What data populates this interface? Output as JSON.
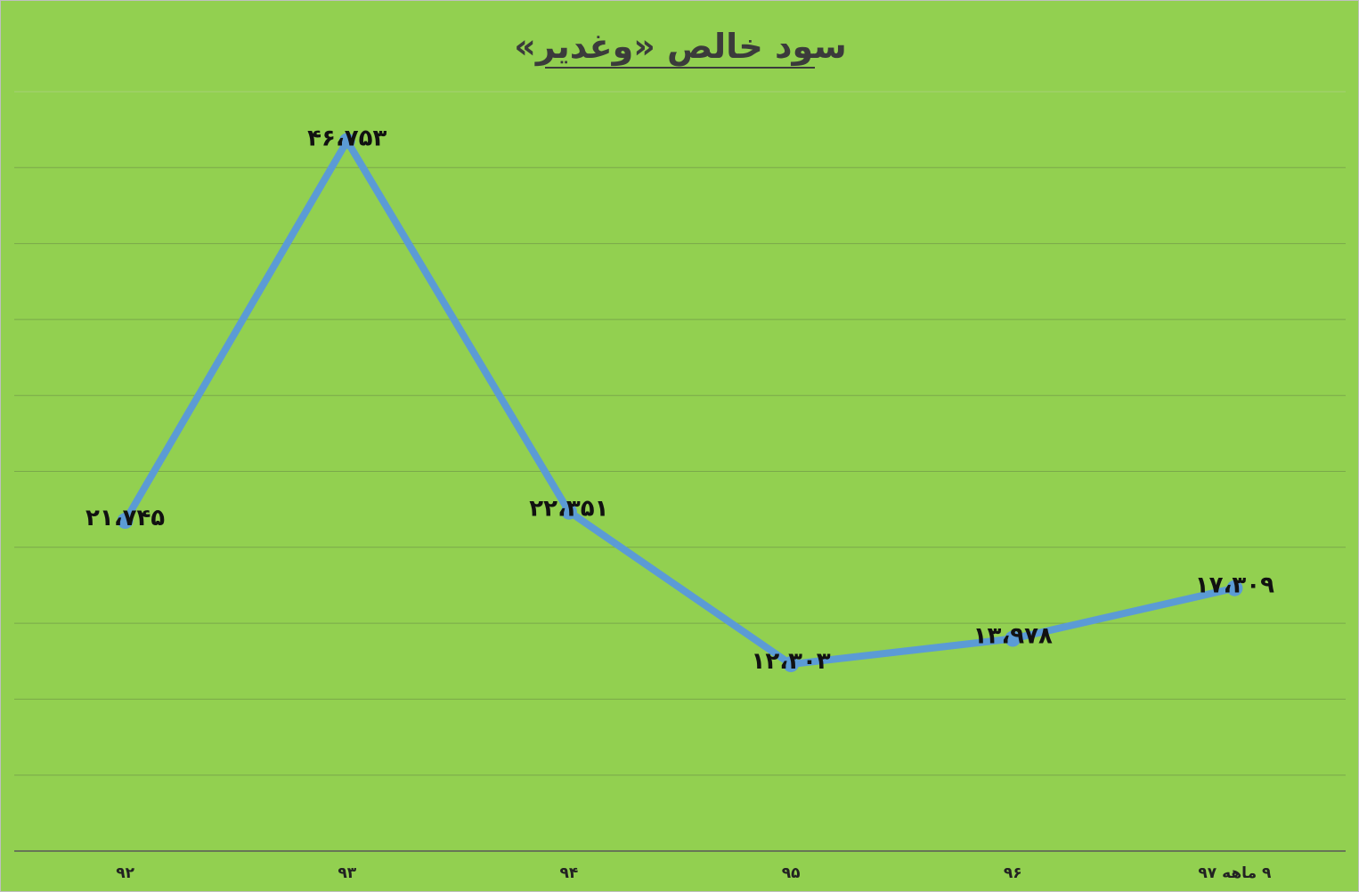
{
  "chart_data": {
    "type": "line",
    "title": "سود خالص «وغدیر»",
    "xlabel": "",
    "ylabel": "",
    "categories": [
      "۹۲",
      "۹۳",
      "۹۴",
      "۹۵",
      "۹۶",
      "۹ ماهه ۹۷"
    ],
    "series": [
      {
        "values": [
          21745,
          46753,
          22351,
          12303,
          13978,
          17309
        ],
        "labels": [
          "۲۱،۷۴۵",
          "۴۶،۷۵۳",
          "۲۲،۳۵۱",
          "۱۲،۳۰۳",
          "۱۳،۹۷۸",
          "۱۷،۳۰۹"
        ],
        "color": "#5b9bd5"
      }
    ],
    "ylim": [
      0,
      50000
    ],
    "grid": true,
    "legend": "none",
    "colors": {
      "background": "#92d050",
      "gridline": "#7aa84a",
      "axis": "#595959",
      "line": "#5b9bd5"
    }
  }
}
